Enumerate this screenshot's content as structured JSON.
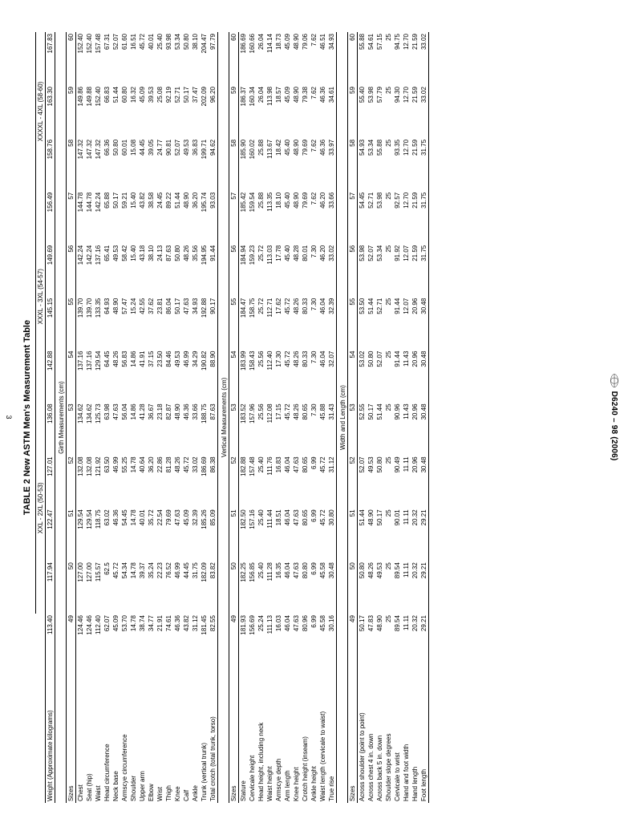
{
  "title": "TABLE 2  New ASTM Men's Measurement Table",
  "doc_code": "D6240 – 98 (2006)",
  "page_no": "3",
  "groups": [
    {
      "label": "XXL - 2XL (50-53)",
      "span": 4
    },
    {
      "label": "XXXL - 3XL (54-57)",
      "span": 4
    },
    {
      "label": "XXXXL - 4XL (58-60)",
      "span": 3
    }
  ],
  "size_cols": [
    "49",
    "50",
    "51",
    "52",
    "53",
    "54",
    "55",
    "56",
    "57",
    "58",
    "59",
    "60"
  ],
  "weight_row": {
    "label": "Weight (Approximate kilograms)",
    "vals": [
      "113.40",
      "117.94",
      "122.47",
      "127.01",
      "136.08",
      "142.88",
      "145.15",
      "149.69",
      "156.49",
      "158.76",
      "163.30",
      "167.83"
    ]
  },
  "sections": [
    {
      "heading": "Girth Measurements (cm)",
      "sizes_label": "Sizes",
      "rows": [
        {
          "label": "Chest",
          "vals": [
            "124.46",
            "127.00",
            "129.54",
            "132.08",
            "134.62",
            "137.16",
            "139.70",
            "142.24",
            "144.78",
            "147.32",
            "149.86",
            "152.40"
          ]
        },
        {
          "label": "Seat (hip)",
          "vals": [
            "124.46",
            "127.00",
            "129.54",
            "132.08",
            "134.62",
            "137.16",
            "139.70",
            "142.24",
            "144.78",
            "147.32",
            "149.88",
            "152.40"
          ]
        },
        {
          "label": "Waist",
          "vals": [
            "112.40",
            "115.57",
            "118.75",
            "121.92",
            "125.73",
            "129.54",
            "133.35",
            "137.16",
            "142.24",
            "147.32",
            "152.40",
            "157.48"
          ]
        },
        {
          "label": "Head circumference",
          "vals": [
            "62.07",
            "62.5",
            "63.02",
            "63.50",
            "63.98",
            "64.45",
            "64.93",
            "65.41",
            "65.88",
            "66.36",
            "66.83",
            "67.31"
          ]
        },
        {
          "label": "Neck base",
          "vals": [
            "45.09",
            "45.72",
            "46.36",
            "46.99",
            "47.63",
            "48.26",
            "48.90",
            "49.53",
            "50.17",
            "50.80",
            "51.44",
            "52.07"
          ]
        },
        {
          "label": "Armscye circumference",
          "vals": [
            "53.70",
            "54.34",
            "54.45",
            "55.25",
            "56.04",
            "56.83",
            "57.47",
            "58.42",
            "59.21",
            "60.01",
            "60.80",
            "61.60"
          ]
        },
        {
          "label": "Shoulder",
          "vals": [
            "14.78",
            "14.78",
            "14.78",
            "14.78",
            "14.86",
            "14.86",
            "15.24",
            "15.40",
            "15.40",
            "15.08",
            "16.32",
            "16.51"
          ]
        },
        {
          "label": "Upper arm",
          "vals": [
            "38.74",
            "39.37",
            "40.01",
            "40.64",
            "41.28",
            "41.91",
            "42.55",
            "43.18",
            "43.82",
            "44.45",
            "45.09",
            "45.72"
          ]
        },
        {
          "label": "Elbow",
          "vals": [
            "34.77",
            "35.24",
            "35.72",
            "36.20",
            "36.67",
            "37.15",
            "37.62",
            "38.10",
            "38.58",
            "39.05",
            "39.53",
            "40.01"
          ]
        },
        {
          "label": "Wrist",
          "vals": [
            "21.91",
            "22.23",
            "22.54",
            "22.86",
            "23.18",
            "23.50",
            "23.81",
            "24.13",
            "24.45",
            "24.77",
            "25.08",
            "25.40"
          ]
        },
        {
          "label": "Thigh",
          "vals": [
            "74.61",
            "76.52",
            "79.69",
            "81.28",
            "82.87",
            "84.46",
            "86.04",
            "87.63",
            "89.22",
            "90.81",
            "92.19",
            "93.98"
          ]
        },
        {
          "label": "Knee",
          "vals": [
            "46.36",
            "46.99",
            "47.63",
            "48.26",
            "48.90",
            "49.53",
            "50.17",
            "50.80",
            "51.44",
            "52.07",
            "52.71",
            "53.34"
          ]
        },
        {
          "label": "Calf",
          "vals": [
            "43.82",
            "44.45",
            "45.09",
            "45.72",
            "46.36",
            "46.99",
            "47.63",
            "48.26",
            "48.90",
            "49.53",
            "50.17",
            "50.80"
          ]
        },
        {
          "label": "Ankle",
          "vals": [
            "31.12",
            "31.75",
            "32.39",
            "33.02",
            "33.66",
            "34.29",
            "34.93",
            "35.56",
            "36.20",
            "36.83",
            "37.47",
            "38.10"
          ]
        },
        {
          "label": "Trunk (vertical trunk)",
          "vals": [
            "181.45",
            "182.09",
            "185.26",
            "186.69",
            "188.75",
            "190.82",
            "192.88",
            "194.95",
            "195.74",
            "199.71",
            "202.09",
            "204.47"
          ]
        },
        {
          "label": "Total crotch (total trunk, torso)",
          "vals": [
            "82.55",
            "83.82",
            "85.09",
            "86.38",
            "87.63",
            "88.90",
            "90.17",
            "91.44",
            "93.03",
            "94.62",
            "96.20",
            "97.79"
          ]
        }
      ]
    },
    {
      "heading": "Vertical Measurements (cm)",
      "sizes_label": "Sizes",
      "rows": [
        {
          "label": "Stature",
          "vals": [
            "181.93",
            "182.25",
            "182.50",
            "182.88",
            "183.52",
            "183.99",
            "184.47",
            "184.94",
            "185.42",
            "185.90",
            "186.37",
            "186.69"
          ]
        },
        {
          "label": "Cervicale height",
          "vals": [
            "156.69",
            "156.85",
            "157.16",
            "157.48",
            "157.96",
            "158.43",
            "158.75",
            "159.23",
            "159.54",
            "160.02",
            "160.34",
            "160.66"
          ]
        },
        {
          "label": "Head height, including neck",
          "vals": [
            "25.24",
            "25.40",
            "25.40",
            "25.40",
            "25.56",
            "25.56",
            "25.72",
            "25.72",
            "25.88",
            "25.88",
            "26.04",
            "26.04"
          ]
        },
        {
          "label": "Waist height",
          "vals": [
            "111.13",
            "111.28",
            "111.44",
            "111.76",
            "112.08",
            "112.40",
            "112.71",
            "113.03",
            "113.35",
            "113.67",
            "113.98",
            "114.14"
          ]
        },
        {
          "label": "Armscye depth",
          "vals": [
            "16.03",
            "16.35",
            "18.51",
            "16.83",
            "17.15",
            "17.30",
            "17.62",
            "17.78",
            "18.10",
            "18.42",
            "18.57",
            "18.73"
          ]
        },
        {
          "label": "Arm length",
          "vals": [
            "46.04",
            "46.04",
            "46.04",
            "46.04",
            "45.72",
            "45.72",
            "45.72",
            "45.40",
            "45.40",
            "45.40",
            "45.09",
            "45.09"
          ]
        },
        {
          "label": "Knee height",
          "vals": [
            "47.63",
            "47.63",
            "47.63",
            "47.63",
            "48.26",
            "48.26",
            "48.26",
            "48.28",
            "48.90",
            "48.90",
            "48.90",
            "48.90"
          ]
        },
        {
          "label": "Crotch height (inseam)",
          "vals": [
            "80.96",
            "80.80",
            "80.65",
            "80.65",
            "80.65",
            "80.33",
            "80.33",
            "80.01",
            "79.69",
            "79.69",
            "79.38",
            "79.06"
          ]
        },
        {
          "label": "Ankle height",
          "vals": [
            "6.99",
            "6.99",
            "6.99",
            "6.99",
            "7.30",
            "7.30",
            "7.30",
            "7.30",
            "7.62",
            "7.62",
            "7.62",
            "7.62"
          ]
        },
        {
          "label": "Waist length (cervicale to waist)",
          "vals": [
            "45.58",
            "45.58",
            "45.72",
            "45.72",
            "45.88",
            "46.04",
            "46.04",
            "46.20",
            "46.20",
            "46.36",
            "46.36",
            "46.51"
          ]
        },
        {
          "label": "True rise",
          "vals": [
            "30.16",
            "30.48",
            "30.80",
            "31.12",
            "31.43",
            "32.07",
            "32.39",
            "33.02",
            "33.66",
            "33.97",
            "34.61",
            "34.93"
          ]
        }
      ]
    },
    {
      "heading": "Width and Length (cm)",
      "sizes_label": "Sizes",
      "rows": [
        {
          "label": "Across shoulder (point to point)",
          "vals": [
            "50.17",
            "50.80",
            "51.44",
            "52.07",
            "52.55",
            "53.02",
            "53.50",
            "53.98",
            "54.45",
            "54.93",
            "55.40",
            "55.88"
          ]
        },
        {
          "label": "Across chest 4 in. down",
          "vals": [
            "47.83",
            "48.26",
            "48.90",
            "49.53",
            "50.17",
            "50.80",
            "51.44",
            "52.07",
            "52.71",
            "53.34",
            "53.98",
            "54.61"
          ]
        },
        {
          "label": "Across back 5 in. down",
          "vals": [
            "48.90",
            "49.53",
            "50.17",
            "50.80",
            "51.44",
            "52.07",
            "52.71",
            "53.34",
            "53.98",
            "55.88",
            "57.79",
            "57.15"
          ]
        },
        {
          "label": "Shoulder slope degrees",
          "vals": [
            "25",
            "25",
            "25",
            "25",
            "25",
            "25",
            "25",
            "25",
            "25",
            "25",
            "25",
            "25"
          ]
        },
        {
          "label": "Cervicale to wrist",
          "vals": [
            "89.54",
            "89.54",
            "90.01",
            "90.49",
            "90.96",
            "91.44",
            "91.44",
            "91.92",
            "92.57",
            "93.35",
            "94.30",
            "94.75"
          ]
        },
        {
          "label": "Hand and foot width",
          "vals": [
            "11.11",
            "11.11",
            "11.11",
            "11.11",
            "11.43",
            "11.43",
            "12.07",
            "12.07",
            "12.70",
            "12.70",
            "12.70",
            "12.70"
          ]
        },
        {
          "label": "Hand length",
          "vals": [
            "20.32",
            "20.32",
            "20.32",
            "20.96",
            "20.96",
            "20.96",
            "20.96",
            "21.59",
            "21.59",
            "21.59",
            "21.59",
            "21.59"
          ]
        },
        {
          "label": "Foot length",
          "vals": [
            "29.21",
            "29.21",
            "29.21",
            "30.48",
            "30.48",
            "30.48",
            "30.48",
            "31.75",
            "31.75",
            "31.75",
            "33.02",
            "33.02"
          ]
        }
      ]
    }
  ]
}
